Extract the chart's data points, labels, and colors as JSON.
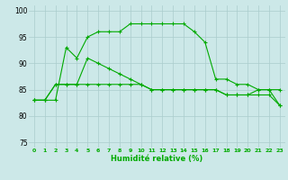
{
  "xlabel": "Humidité relative (%)",
  "bg_color": "#cce8e8",
  "grid_color": "#aacccc",
  "line_color": "#00aa00",
  "marker": "+",
  "xlim": [
    -0.5,
    23.5
  ],
  "ylim": [
    74,
    101
  ],
  "yticks": [
    75,
    80,
    85,
    90,
    95,
    100
  ],
  "xticks": [
    0,
    1,
    2,
    3,
    4,
    5,
    6,
    7,
    8,
    9,
    10,
    11,
    12,
    13,
    14,
    15,
    16,
    17,
    18,
    19,
    20,
    21,
    22,
    23
  ],
  "series": [
    [
      83,
      83,
      83,
      93,
      91,
      95,
      96,
      96,
      96,
      97.5,
      97.5,
      97.5,
      97.5,
      97.5,
      97.5,
      96,
      94,
      87,
      87,
      86,
      86,
      85,
      85,
      85
    ],
    [
      83,
      83,
      86,
      86,
      86,
      86,
      86,
      86,
      86,
      86,
      86,
      85,
      85,
      85,
      85,
      85,
      85,
      85,
      84,
      84,
      84,
      84,
      84,
      82
    ],
    [
      83,
      83,
      86,
      86,
      86,
      91,
      90,
      89,
      88,
      87,
      86,
      85,
      85,
      85,
      85,
      85,
      85,
      85,
      84,
      84,
      84,
      85,
      85,
      82
    ]
  ]
}
